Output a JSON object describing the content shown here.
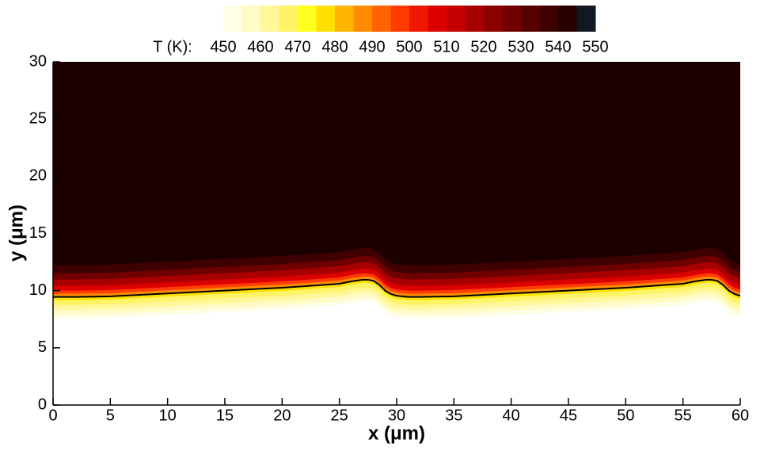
{
  "chart_data": {
    "type": "contour",
    "colorbar": {
      "label": "T (K):",
      "levels": [
        450,
        455,
        460,
        465,
        470,
        475,
        480,
        485,
        490,
        495,
        500,
        505,
        510,
        515,
        520,
        525,
        530,
        535,
        540,
        545,
        550
      ],
      "colors": [
        "#fffde6",
        "#fffbc4",
        "#fff79a",
        "#fff466",
        "#ffff20",
        "#ffe000",
        "#ffb400",
        "#ff8c00",
        "#ff6400",
        "#ff3c00",
        "#f01800",
        "#dc0000",
        "#c40000",
        "#a80000",
        "#8c0000",
        "#700000",
        "#560000",
        "#3e0000",
        "#280000",
        "#101820"
      ],
      "ticks": [
        450,
        460,
        470,
        480,
        490,
        500,
        510,
        520,
        530,
        540,
        550
      ]
    },
    "field_color": "#1c0000",
    "interface": {
      "color": "#000000",
      "x": [
        0,
        2,
        5,
        10,
        15,
        20,
        25,
        26,
        27,
        27.5,
        28,
        28.5,
        29,
        29.5,
        30,
        31,
        32,
        35,
        40,
        45,
        50,
        55,
        56,
        57,
        57.5,
        58,
        58.5,
        59,
        59.5,
        60
      ],
      "y": [
        9.45,
        9.45,
        9.5,
        9.75,
        10.0,
        10.25,
        10.6,
        10.8,
        10.95,
        10.95,
        10.85,
        10.5,
        10.0,
        9.7,
        9.55,
        9.45,
        9.45,
        9.5,
        9.75,
        10.0,
        10.25,
        10.6,
        10.8,
        10.95,
        10.95,
        10.85,
        10.5,
        10.0,
        9.7,
        9.55
      ]
    },
    "x_label": "x (μm)",
    "y_label": "y (μm)",
    "xlim": [
      0,
      60
    ],
    "xticks": [
      0,
      5,
      10,
      15,
      20,
      25,
      30,
      35,
      40,
      45,
      50,
      55,
      60
    ],
    "ylim": [
      0,
      30
    ],
    "yticks": [
      0,
      5,
      10,
      15,
      20,
      25,
      30
    ]
  }
}
